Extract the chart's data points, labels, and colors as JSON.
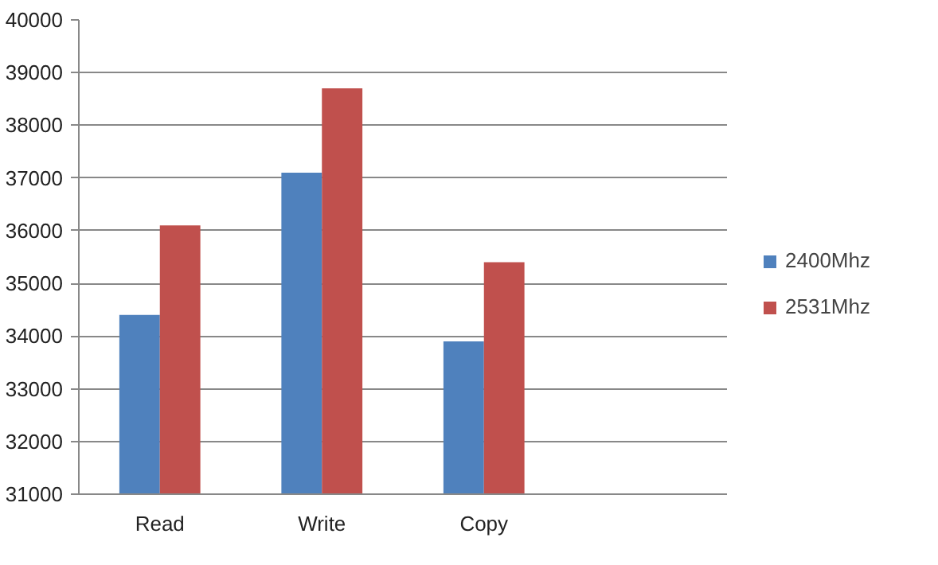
{
  "chart_data": {
    "type": "bar",
    "categories": [
      "Read",
      "Write",
      "Copy",
      null
    ],
    "series": [
      {
        "name": "2400Mhz",
        "color": "#4f81bd",
        "values": [
          34400,
          37100,
          33900,
          null
        ]
      },
      {
        "name": "2531Mhz",
        "color": "#c0504d",
        "values": [
          36100,
          38700,
          35400,
          null
        ]
      }
    ],
    "ylim": [
      31000,
      40000
    ],
    "yticks": [
      31000,
      32000,
      33000,
      34000,
      35000,
      36000,
      37000,
      38000,
      39000,
      40000
    ],
    "grid": "y",
    "legend": "right"
  }
}
